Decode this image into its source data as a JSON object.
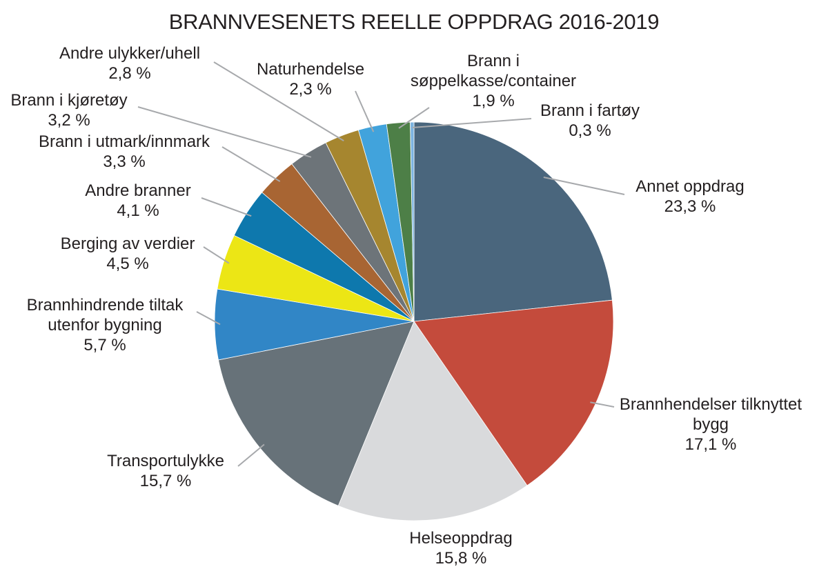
{
  "chart_data": {
    "type": "pie",
    "title": "BRANNVESENETS REELLE OPPDRAG 2016-2019",
    "start": "top",
    "direction": "clockwise",
    "slices": [
      {
        "label": [
          "Annet oppdrag"
        ],
        "value": 23.3,
        "value_label": "23,3 %",
        "color": "#4a667d"
      },
      {
        "label": [
          "Brannhendelser tilknyttet",
          "bygg"
        ],
        "value": 17.1,
        "value_label": "17,1 %",
        "color": "#c44b3c"
      },
      {
        "label": [
          "Helseoppdrag"
        ],
        "value": 15.8,
        "value_label": "15,8 %",
        "color": "#d9dadc"
      },
      {
        "label": [
          "Transportulykke"
        ],
        "value": 15.7,
        "value_label": "15,7 %",
        "color": "#677279"
      },
      {
        "label": [
          "Brannhindrende tiltak",
          "utenfor bygning"
        ],
        "value": 5.7,
        "value_label": "5,7 %",
        "color": "#3186c6"
      },
      {
        "label": [
          "Berging av verdier"
        ],
        "value": 4.5,
        "value_label": "4,5 %",
        "color": "#ece615"
      },
      {
        "label": [
          "Andre branner"
        ],
        "value": 4.1,
        "value_label": "4,1 %",
        "color": "#0e78ad"
      },
      {
        "label": [
          "Brann i utmark/innmark"
        ],
        "value": 3.3,
        "value_label": "3,3 %",
        "color": "#a86533"
      },
      {
        "label": [
          "Brann i kjøretøy"
        ],
        "value": 3.2,
        "value_label": "3,2 %",
        "color": "#6d7479"
      },
      {
        "label": [
          "Andre ulykker/uhell"
        ],
        "value": 2.8,
        "value_label": "2,8 %",
        "color": "#a6862f"
      },
      {
        "label": [
          "Naturhendelse"
        ],
        "value": 2.3,
        "value_label": "2,3 %",
        "color": "#41a3dc"
      },
      {
        "label": [
          "Brann i",
          "søppelkasse/container"
        ],
        "value": 1.9,
        "value_label": "1,9 %",
        "color": "#4d7f47"
      },
      {
        "label": [
          "Brann i fartøy"
        ],
        "value": 0.3,
        "value_label": "0,3 %",
        "color": "#7cb3e0"
      }
    ]
  }
}
